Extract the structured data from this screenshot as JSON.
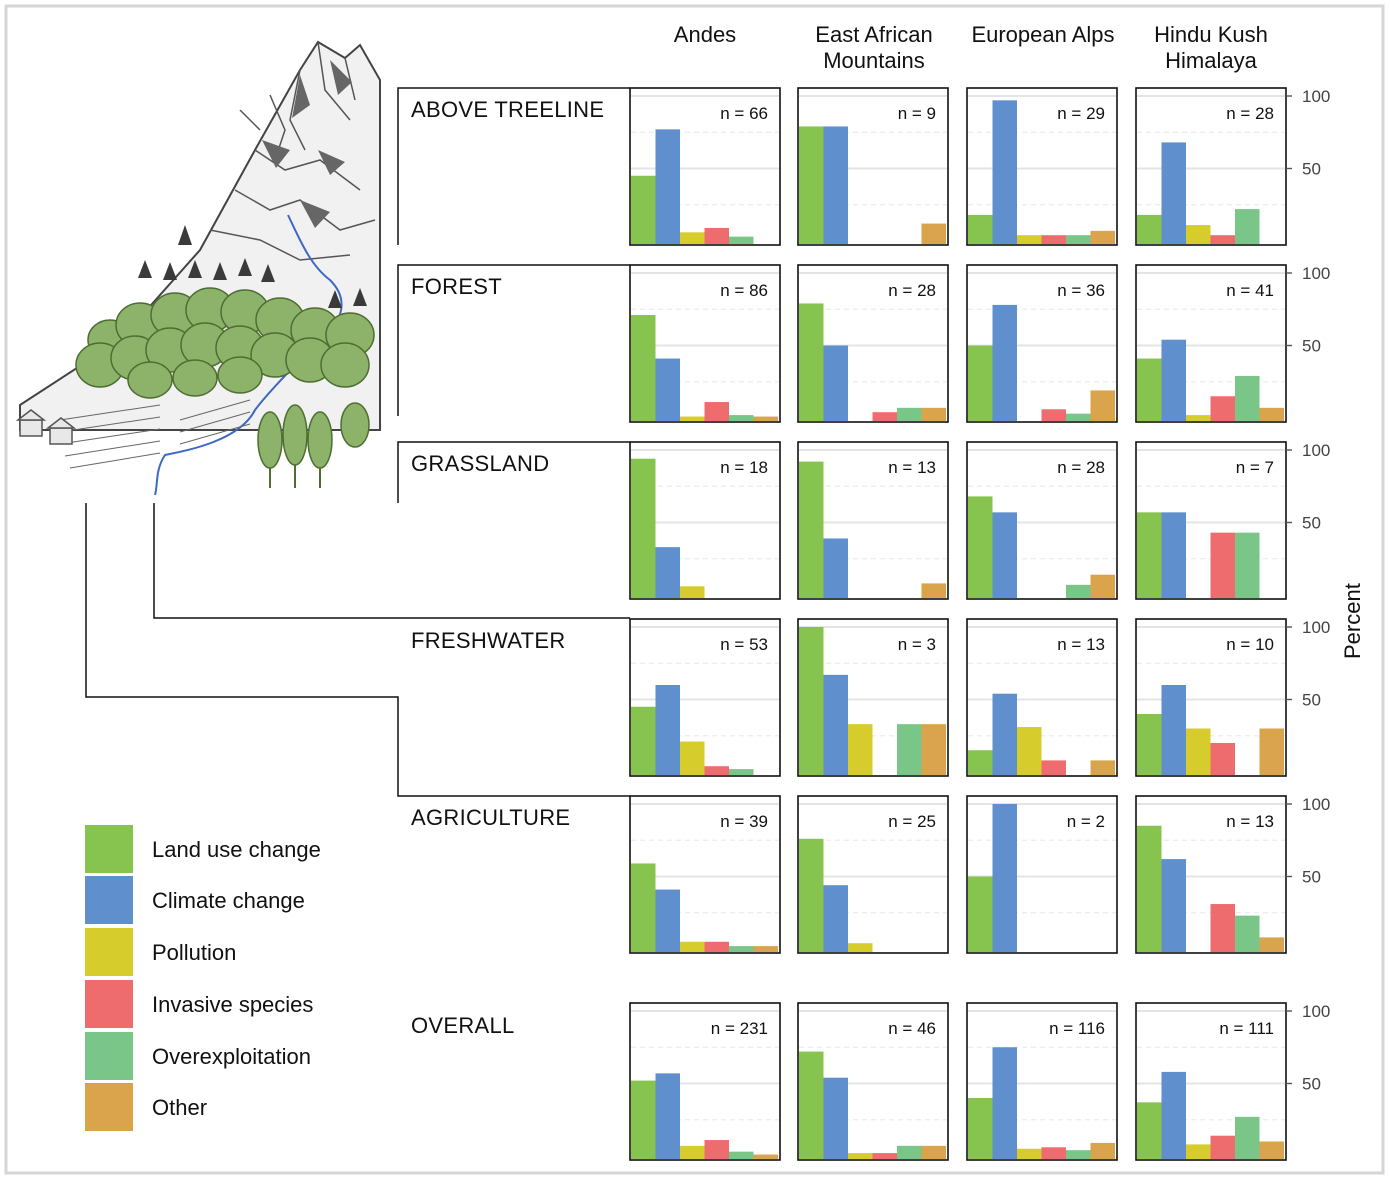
{
  "columns": [
    "Andes",
    "East African Mountains",
    "European Alps",
    "Hindu Kush Himalaya"
  ],
  "rows": [
    "ABOVE TREELINE",
    "FOREST",
    "GRASSLAND",
    "FRESHWATER",
    "AGRICULTURE",
    "OVERALL"
  ],
  "ylabel": "Percent",
  "yticks": [
    "100",
    "50"
  ],
  "n_prefix": "n =",
  "legend": [
    {
      "label": "Land use change",
      "color": "#86c34f"
    },
    {
      "label": "Climate change",
      "color": "#5f8fcd"
    },
    {
      "label": "Pollution",
      "color": "#d6cd2c"
    },
    {
      "label": "Invasive species",
      "color": "#ee6b6e"
    },
    {
      "label": "Overexploitation",
      "color": "#79c688"
    },
    {
      "label": "Other",
      "color": "#d9a44b"
    }
  ],
  "chart_data": {
    "type": "bar",
    "title": "",
    "ylabel": "Percent",
    "ylim": [
      0,
      100
    ],
    "categories": [
      "Land use change",
      "Climate change",
      "Pollution",
      "Invasive species",
      "Overexploitation",
      "Other"
    ],
    "panels": [
      {
        "row": "ABOVE TREELINE",
        "column": "Andes",
        "n": 66,
        "values": [
          45,
          77,
          6,
          9,
          3,
          0
        ]
      },
      {
        "row": "ABOVE TREELINE",
        "column": "East African Mountains",
        "n": 9,
        "values": [
          79,
          79,
          0,
          0,
          0,
          12
        ]
      },
      {
        "row": "ABOVE TREELINE",
        "column": "European Alps",
        "n": 29,
        "values": [
          18,
          97,
          4,
          4,
          4,
          7
        ]
      },
      {
        "row": "ABOVE TREELINE",
        "column": "Hindu Kush Himalaya",
        "n": 28,
        "values": [
          18,
          68,
          11,
          4,
          22,
          0
        ]
      },
      {
        "row": "FOREST",
        "column": "Andes",
        "n": 86,
        "values": [
          71,
          41,
          1,
          11,
          2,
          1
        ]
      },
      {
        "row": "FOREST",
        "column": "East African Mountains",
        "n": 28,
        "values": [
          79,
          50,
          0,
          4,
          7,
          7
        ]
      },
      {
        "row": "FOREST",
        "column": "European Alps",
        "n": 36,
        "values": [
          50,
          78,
          0,
          6,
          3,
          19
        ]
      },
      {
        "row": "FOREST",
        "column": "Hindu Kush Himalaya",
        "n": 41,
        "values": [
          41,
          54,
          2,
          15,
          29,
          7
        ]
      },
      {
        "row": "GRASSLAND",
        "column": "Andes",
        "n": 18,
        "values": [
          94,
          33,
          6,
          0,
          0,
          0
        ]
      },
      {
        "row": "GRASSLAND",
        "column": "East African Mountains",
        "n": 13,
        "values": [
          92,
          39,
          0,
          0,
          0,
          8
        ]
      },
      {
        "row": "GRASSLAND",
        "column": "European Alps",
        "n": 28,
        "values": [
          68,
          57,
          0,
          0,
          7,
          14
        ]
      },
      {
        "row": "GRASSLAND",
        "column": "Hindu Kush Himalaya",
        "n": 7,
        "values": [
          57,
          57,
          0,
          43,
          43,
          0
        ]
      },
      {
        "row": "FRESHWATER",
        "column": "Andes",
        "n": 53,
        "values": [
          45,
          60,
          21,
          4,
          2,
          0
        ]
      },
      {
        "row": "FRESHWATER",
        "column": "East African Mountains",
        "n": 3,
        "values": [
          100,
          67,
          33,
          0,
          33,
          33
        ]
      },
      {
        "row": "FRESHWATER",
        "column": "European Alps",
        "n": 13,
        "values": [
          15,
          54,
          31,
          8,
          0,
          8
        ]
      },
      {
        "row": "FRESHWATER",
        "column": "Hindu Kush Himalaya",
        "n": 10,
        "values": [
          40,
          60,
          30,
          20,
          0,
          30
        ]
      },
      {
        "row": "AGRICULTURE",
        "column": "Andes",
        "n": 39,
        "values": [
          59,
          41,
          5,
          5,
          2,
          2
        ]
      },
      {
        "row": "AGRICULTURE",
        "column": "East African Mountains",
        "n": 25,
        "values": [
          76,
          44,
          4,
          0,
          0,
          0
        ]
      },
      {
        "row": "AGRICULTURE",
        "column": "European Alps",
        "n": 2,
        "values": [
          50,
          100,
          0,
          0,
          0,
          0
        ]
      },
      {
        "row": "AGRICULTURE",
        "column": "Hindu Kush Himalaya",
        "n": 13,
        "values": [
          85,
          62,
          0,
          31,
          23,
          8
        ]
      },
      {
        "row": "OVERALL",
        "column": "Andes",
        "n": 231,
        "values": [
          52,
          57,
          7,
          11,
          3,
          1
        ]
      },
      {
        "row": "OVERALL",
        "column": "East African Mountains",
        "n": 46,
        "values": [
          72,
          54,
          2,
          2,
          7,
          7
        ]
      },
      {
        "row": "OVERALL",
        "column": "European Alps",
        "n": 116,
        "values": [
          40,
          75,
          5,
          6,
          4,
          9
        ]
      },
      {
        "row": "OVERALL",
        "column": "Hindu Kush Himalaya",
        "n": 111,
        "values": [
          37,
          58,
          8,
          14,
          27,
          10
        ]
      }
    ]
  }
}
